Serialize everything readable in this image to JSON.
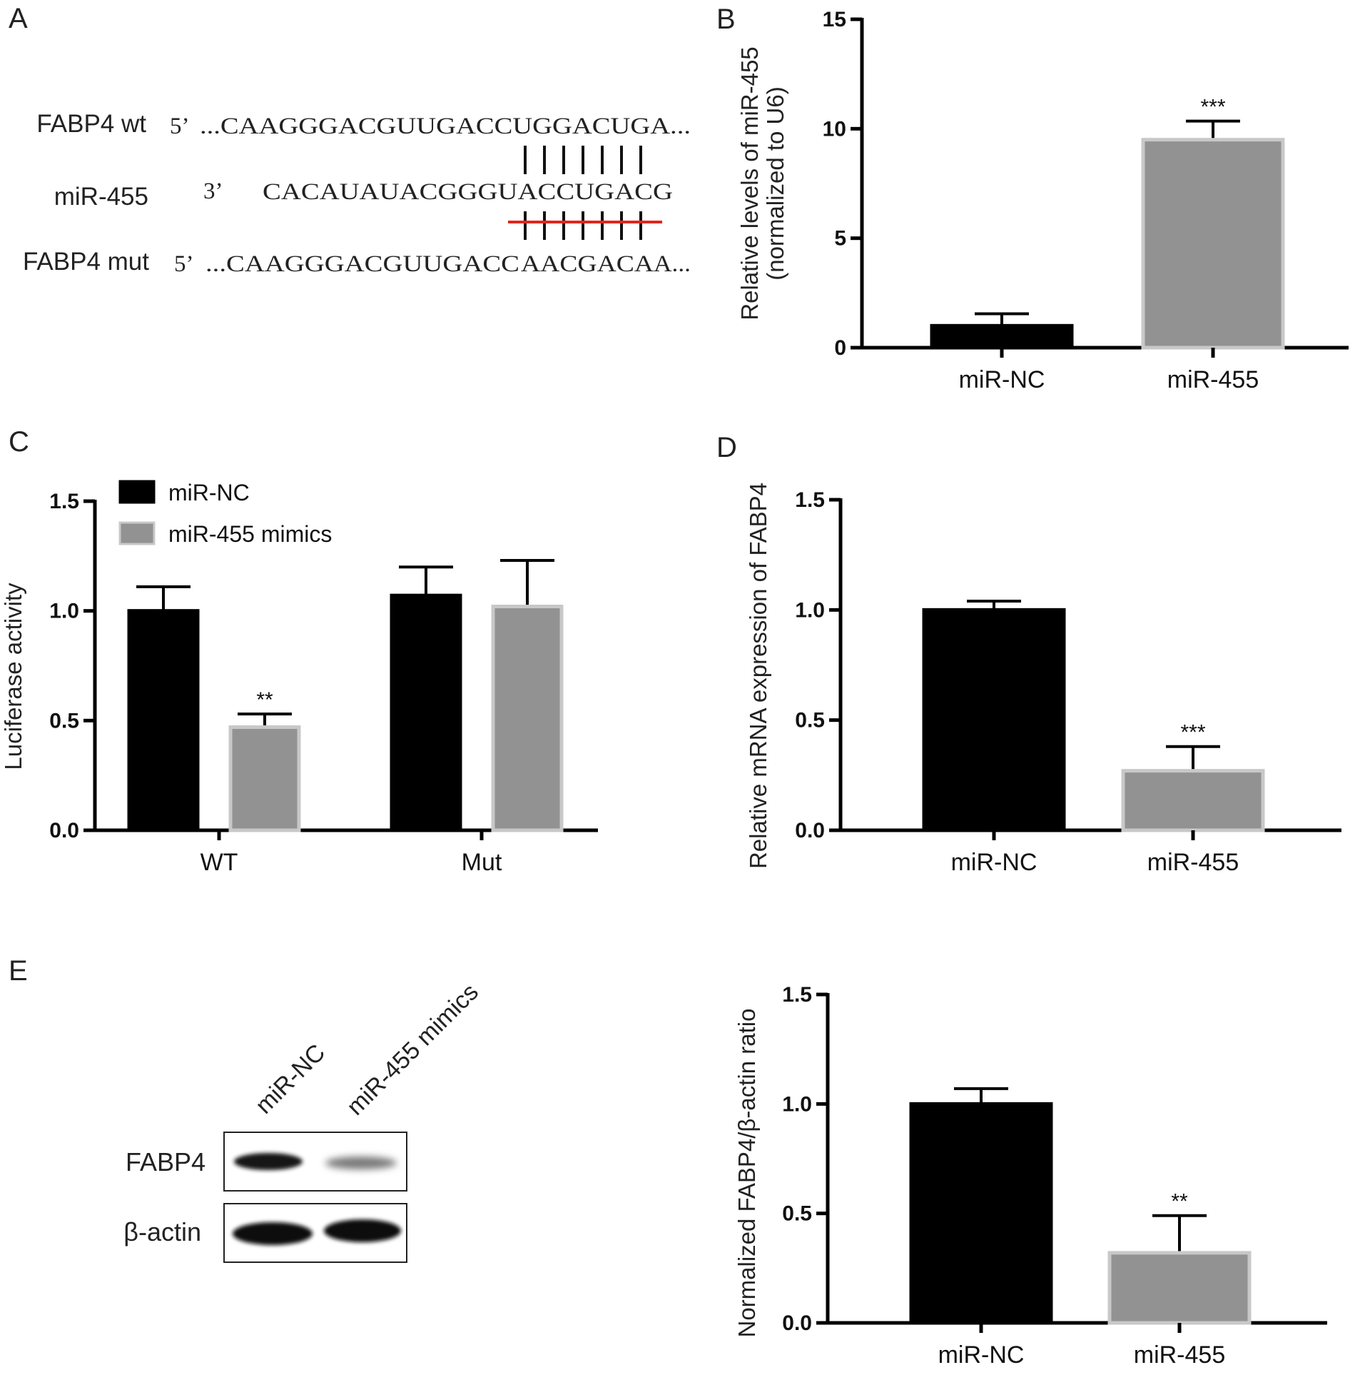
{
  "panels": {
    "A": {
      "letter": "A",
      "rows": [
        {
          "name": "FABP4 wt",
          "end": "5’",
          "seq": "...CAAGGGACGUUGACCUGGACUGA...",
          "seq_red": "",
          "seq_tail": ""
        },
        {
          "name": "miR-455",
          "end": "3’",
          "seq": "CACAUAUACGGGUACCUGACG",
          "seq_red": "",
          "seq_tail": ""
        },
        {
          "name": "FABP4 mut",
          "end": "5’",
          "seq": "...CAAGGGACGUUGACC",
          "seq_red": "AACGACA",
          "seq_tail": "A..."
        }
      ],
      "mutation_color": "#e0261c"
    },
    "C": {
      "letter": "C"
    },
    "D": {
      "letter": "D"
    },
    "E": {
      "letter": "E",
      "lane_labels": [
        "miR-NC",
        "miR-455 mimics"
      ],
      "band_labels": [
        "FABP4",
        "β-actin"
      ]
    }
  },
  "colors": {
    "black_bar": "#000000",
    "gray_bar": "#929292",
    "gray_edge": "#c8c8c8"
  },
  "chart_data": [
    {
      "id": "B",
      "letter": "B",
      "type": "bar",
      "categories": [
        "miR-NC",
        "miR-455"
      ],
      "values": [
        1.0,
        9.5
      ],
      "errors": [
        0.55,
        0.85
      ],
      "bar_colors": [
        "black",
        "gray"
      ],
      "annotations": [
        "",
        "***"
      ],
      "ylabel": "Relative levels of miR-455\n(normalized to U6)",
      "ylim": [
        0,
        15
      ],
      "yticks": [
        0,
        5,
        10,
        15
      ],
      "ytick_labels": [
        "0",
        "5",
        "10",
        "15"
      ],
      "grid": false
    },
    {
      "id": "C",
      "letter": "C",
      "type": "bar",
      "categories": [
        "WT",
        "Mut"
      ],
      "series": [
        {
          "name": "miR-NC",
          "values": [
            1.0,
            1.07
          ],
          "errors": [
            0.11,
            0.13
          ],
          "color": "black",
          "annotations": [
            "",
            ""
          ]
        },
        {
          "name": "miR-455 mimics",
          "values": [
            0.47,
            1.02
          ],
          "errors": [
            0.06,
            0.21
          ],
          "color": "gray",
          "annotations": [
            "**",
            ""
          ]
        }
      ],
      "ylabel": "Luciferase activity",
      "ylim": [
        0,
        1.5
      ],
      "yticks": [
        0,
        0.5,
        1.0,
        1.5
      ],
      "ytick_labels": [
        "0.0",
        "0.5",
        "1.0",
        "1.5"
      ],
      "legend_position": "top-left",
      "grid": false
    },
    {
      "id": "D",
      "letter": "D",
      "type": "bar",
      "categories": [
        "miR-NC",
        "miR-455"
      ],
      "values": [
        1.0,
        0.27
      ],
      "errors": [
        0.04,
        0.11
      ],
      "bar_colors": [
        "black",
        "gray"
      ],
      "annotations": [
        "",
        "***"
      ],
      "ylabel": "Relative mRNA expression of FABP4",
      "ylim": [
        0,
        1.5
      ],
      "yticks": [
        0,
        0.5,
        1.0,
        1.5
      ],
      "ytick_labels": [
        "0.0",
        "0.5",
        "1.0",
        "1.5"
      ],
      "grid": false
    },
    {
      "id": "E",
      "letter": "",
      "type": "bar",
      "categories": [
        "miR-NC",
        "miR-455"
      ],
      "values": [
        1.0,
        0.32
      ],
      "errors": [
        0.07,
        0.17
      ],
      "bar_colors": [
        "black",
        "gray"
      ],
      "annotations": [
        "",
        "**"
      ],
      "ylabel": "Normalized FABP4/β-actin ratio",
      "ylim": [
        0,
        1.5
      ],
      "yticks": [
        0,
        0.5,
        1.0,
        1.5
      ],
      "ytick_labels": [
        "0.0",
        "0.5",
        "1.0",
        "1.5"
      ],
      "grid": false
    }
  ]
}
